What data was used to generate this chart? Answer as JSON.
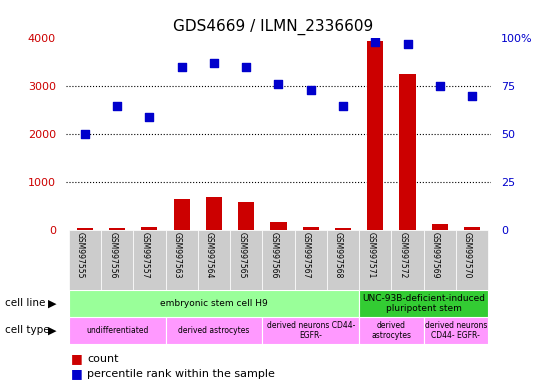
{
  "title": "GDS4669 / ILMN_2336609",
  "samples": [
    "GSM997555",
    "GSM997556",
    "GSM997557",
    "GSM997563",
    "GSM997564",
    "GSM997565",
    "GSM997566",
    "GSM997567",
    "GSM997568",
    "GSM997571",
    "GSM997572",
    "GSM997569",
    "GSM997570"
  ],
  "counts": [
    50,
    60,
    80,
    650,
    700,
    600,
    180,
    80,
    60,
    3950,
    3250,
    130,
    80
  ],
  "percentile": [
    50,
    65,
    59,
    85,
    87,
    85,
    76,
    73,
    65,
    98,
    97,
    75,
    70
  ],
  "ylim_left": [
    0,
    4000
  ],
  "ylim_right": [
    0,
    100
  ],
  "yticks_left": [
    0,
    1000,
    2000,
    3000,
    4000
  ],
  "yticks_right": [
    0,
    25,
    50,
    75,
    100
  ],
  "bar_color": "#cc0000",
  "dot_color": "#0000cc",
  "cell_line_groups": [
    {
      "label": "embryonic stem cell H9",
      "start": 0,
      "end": 9,
      "color": "#99ff99"
    },
    {
      "label": "UNC-93B-deficient-induced\npluripotent stem",
      "start": 9,
      "end": 13,
      "color": "#33cc33"
    }
  ],
  "cell_type_groups": [
    {
      "label": "undifferentiated",
      "start": 0,
      "end": 3,
      "color": "#ff99ff"
    },
    {
      "label": "derived astrocytes",
      "start": 3,
      "end": 6,
      "color": "#ff99ff"
    },
    {
      "label": "derived neurons CD44-\nEGFR-",
      "start": 6,
      "end": 9,
      "color": "#ff99ff"
    },
    {
      "label": "derived\nastrocytes",
      "start": 9,
      "end": 11,
      "color": "#ff99ff"
    },
    {
      "label": "derived neurons\nCD44- EGFR-",
      "start": 11,
      "end": 13,
      "color": "#ff99ff"
    }
  ],
  "label_left_color": "#cc0000",
  "label_right_color": "#0000cc",
  "background_color": "#ffffff",
  "row_label_cell_line": "cell line",
  "row_label_cell_type": "cell type",
  "legend_count": "count",
  "legend_percentile": "percentile rank within the sample"
}
